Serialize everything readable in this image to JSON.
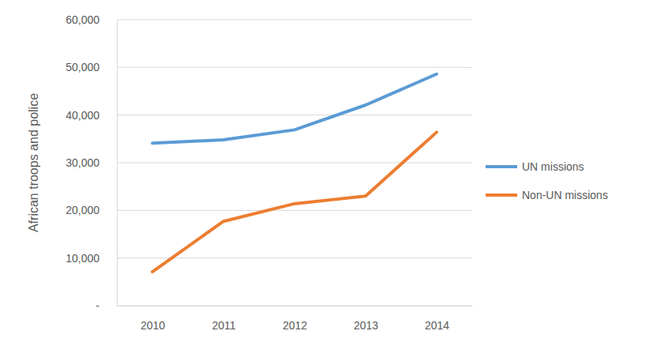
{
  "chart_data": {
    "type": "line",
    "y_label": "African troops and police",
    "categories": [
      "2010",
      "2011",
      "2012",
      "2013",
      "2014"
    ],
    "series": [
      {
        "name": "UN missions",
        "color": "#5b9bd5",
        "values": [
          34100,
          34800,
          36900,
          42100,
          48600
        ]
      },
      {
        "name": "Non-UN missions",
        "color": "#ed7d31",
        "values": [
          7100,
          17700,
          21400,
          23000,
          36400
        ]
      }
    ],
    "ylim": [
      0,
      60000
    ],
    "yticks": [
      {
        "value": 0,
        "label": "-"
      },
      {
        "value": 10000,
        "label": "10,000"
      },
      {
        "value": 20000,
        "label": "20,000"
      },
      {
        "value": 30000,
        "label": "30,000"
      },
      {
        "value": 40000,
        "label": "40,000"
      },
      {
        "value": 50000,
        "label": "50,000"
      },
      {
        "value": 60000,
        "label": "60,000"
      }
    ],
    "grid": true,
    "legend": "right"
  }
}
